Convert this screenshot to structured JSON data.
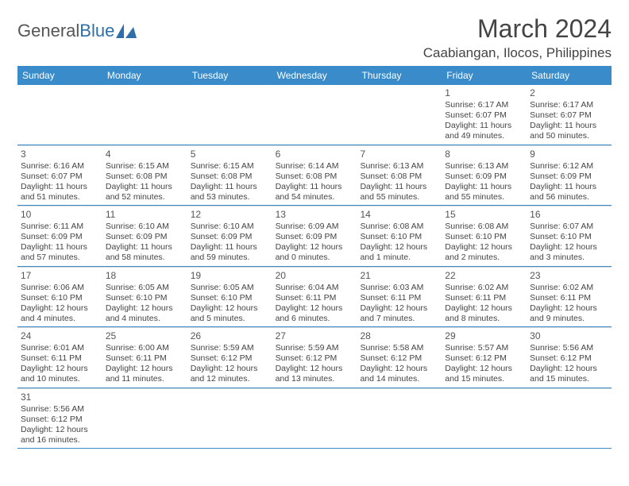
{
  "logo": {
    "text_a": "General",
    "text_b": "Blue"
  },
  "header": {
    "month_year": "March 2024",
    "location": "Caabiangan, Ilocos, Philippines"
  },
  "colors": {
    "header_bar": "#3a8bc9",
    "header_text": "#ffffff",
    "cell_rule": "#3a8bc9",
    "text": "#444444"
  },
  "weekdays": [
    "Sunday",
    "Monday",
    "Tuesday",
    "Wednesday",
    "Thursday",
    "Friday",
    "Saturday"
  ],
  "grid": {
    "cols": 7,
    "first_day_col": 5,
    "days_in_month": 31
  },
  "days": {
    "1": {
      "sunrise": "6:17 AM",
      "sunset": "6:07 PM",
      "daylight_a": "Daylight: 11 hours",
      "daylight_b": "and 49 minutes."
    },
    "2": {
      "sunrise": "6:17 AM",
      "sunset": "6:07 PM",
      "daylight_a": "Daylight: 11 hours",
      "daylight_b": "and 50 minutes."
    },
    "3": {
      "sunrise": "6:16 AM",
      "sunset": "6:07 PM",
      "daylight_a": "Daylight: 11 hours",
      "daylight_b": "and 51 minutes."
    },
    "4": {
      "sunrise": "6:15 AM",
      "sunset": "6:08 PM",
      "daylight_a": "Daylight: 11 hours",
      "daylight_b": "and 52 minutes."
    },
    "5": {
      "sunrise": "6:15 AM",
      "sunset": "6:08 PM",
      "daylight_a": "Daylight: 11 hours",
      "daylight_b": "and 53 minutes."
    },
    "6": {
      "sunrise": "6:14 AM",
      "sunset": "6:08 PM",
      "daylight_a": "Daylight: 11 hours",
      "daylight_b": "and 54 minutes."
    },
    "7": {
      "sunrise": "6:13 AM",
      "sunset": "6:08 PM",
      "daylight_a": "Daylight: 11 hours",
      "daylight_b": "and 55 minutes."
    },
    "8": {
      "sunrise": "6:13 AM",
      "sunset": "6:09 PM",
      "daylight_a": "Daylight: 11 hours",
      "daylight_b": "and 55 minutes."
    },
    "9": {
      "sunrise": "6:12 AM",
      "sunset": "6:09 PM",
      "daylight_a": "Daylight: 11 hours",
      "daylight_b": "and 56 minutes."
    },
    "10": {
      "sunrise": "6:11 AM",
      "sunset": "6:09 PM",
      "daylight_a": "Daylight: 11 hours",
      "daylight_b": "and 57 minutes."
    },
    "11": {
      "sunrise": "6:10 AM",
      "sunset": "6:09 PM",
      "daylight_a": "Daylight: 11 hours",
      "daylight_b": "and 58 minutes."
    },
    "12": {
      "sunrise": "6:10 AM",
      "sunset": "6:09 PM",
      "daylight_a": "Daylight: 11 hours",
      "daylight_b": "and 59 minutes."
    },
    "13": {
      "sunrise": "6:09 AM",
      "sunset": "6:09 PM",
      "daylight_a": "Daylight: 12 hours",
      "daylight_b": "and 0 minutes."
    },
    "14": {
      "sunrise": "6:08 AM",
      "sunset": "6:10 PM",
      "daylight_a": "Daylight: 12 hours",
      "daylight_b": "and 1 minute."
    },
    "15": {
      "sunrise": "6:08 AM",
      "sunset": "6:10 PM",
      "daylight_a": "Daylight: 12 hours",
      "daylight_b": "and 2 minutes."
    },
    "16": {
      "sunrise": "6:07 AM",
      "sunset": "6:10 PM",
      "daylight_a": "Daylight: 12 hours",
      "daylight_b": "and 3 minutes."
    },
    "17": {
      "sunrise": "6:06 AM",
      "sunset": "6:10 PM",
      "daylight_a": "Daylight: 12 hours",
      "daylight_b": "and 4 minutes."
    },
    "18": {
      "sunrise": "6:05 AM",
      "sunset": "6:10 PM",
      "daylight_a": "Daylight: 12 hours",
      "daylight_b": "and 4 minutes."
    },
    "19": {
      "sunrise": "6:05 AM",
      "sunset": "6:10 PM",
      "daylight_a": "Daylight: 12 hours",
      "daylight_b": "and 5 minutes."
    },
    "20": {
      "sunrise": "6:04 AM",
      "sunset": "6:11 PM",
      "daylight_a": "Daylight: 12 hours",
      "daylight_b": "and 6 minutes."
    },
    "21": {
      "sunrise": "6:03 AM",
      "sunset": "6:11 PM",
      "daylight_a": "Daylight: 12 hours",
      "daylight_b": "and 7 minutes."
    },
    "22": {
      "sunrise": "6:02 AM",
      "sunset": "6:11 PM",
      "daylight_a": "Daylight: 12 hours",
      "daylight_b": "and 8 minutes."
    },
    "23": {
      "sunrise": "6:02 AM",
      "sunset": "6:11 PM",
      "daylight_a": "Daylight: 12 hours",
      "daylight_b": "and 9 minutes."
    },
    "24": {
      "sunrise": "6:01 AM",
      "sunset": "6:11 PM",
      "daylight_a": "Daylight: 12 hours",
      "daylight_b": "and 10 minutes."
    },
    "25": {
      "sunrise": "6:00 AM",
      "sunset": "6:11 PM",
      "daylight_a": "Daylight: 12 hours",
      "daylight_b": "and 11 minutes."
    },
    "26": {
      "sunrise": "5:59 AM",
      "sunset": "6:12 PM",
      "daylight_a": "Daylight: 12 hours",
      "daylight_b": "and 12 minutes."
    },
    "27": {
      "sunrise": "5:59 AM",
      "sunset": "6:12 PM",
      "daylight_a": "Daylight: 12 hours",
      "daylight_b": "and 13 minutes."
    },
    "28": {
      "sunrise": "5:58 AM",
      "sunset": "6:12 PM",
      "daylight_a": "Daylight: 12 hours",
      "daylight_b": "and 14 minutes."
    },
    "29": {
      "sunrise": "5:57 AM",
      "sunset": "6:12 PM",
      "daylight_a": "Daylight: 12 hours",
      "daylight_b": "and 15 minutes."
    },
    "30": {
      "sunrise": "5:56 AM",
      "sunset": "6:12 PM",
      "daylight_a": "Daylight: 12 hours",
      "daylight_b": "and 15 minutes."
    },
    "31": {
      "sunrise": "5:56 AM",
      "sunset": "6:12 PM",
      "daylight_a": "Daylight: 12 hours",
      "daylight_b": "and 16 minutes."
    }
  },
  "labels": {
    "sunrise_prefix": "Sunrise: ",
    "sunset_prefix": "Sunset: "
  }
}
